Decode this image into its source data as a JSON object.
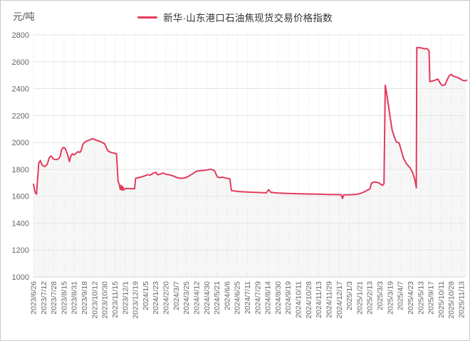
{
  "page": {
    "background": "#ffffff",
    "border_color": "#c9c9c9"
  },
  "header": {
    "unit_label": "元/吨",
    "legend": {
      "label": "新华·山东港口石油焦现货交易价格指数",
      "marker_color": "#e23b5c"
    }
  },
  "chart_data": {
    "type": "area",
    "title": "新华·山东港口石油焦现货交易价格指数",
    "ylabel": "元/吨",
    "ylim": [
      1000,
      2800
    ],
    "y_ticks": [
      1000,
      1200,
      1400,
      1600,
      1800,
      2000,
      2200,
      2400,
      2600,
      2800
    ],
    "grid": true,
    "legend_position": "top-center",
    "x_tick_labels": [
      "2023/6/26",
      "2023/7/12",
      "2023/7/28",
      "2023/8/15",
      "2023/8/31",
      "2023/9/18",
      "2023/10/12",
      "2023/10/30",
      "2023/11/15",
      "2023/12/1",
      "2023/12/19",
      "2024/1/5",
      "2024/1/23",
      "2024/2/20",
      "2024/3/7",
      "2024/3/25",
      "2024/4/12",
      "2024/4/30",
      "2024/5/21",
      "2024/6/6",
      "2024/6/25",
      "2024/7/11",
      "2024/7/29",
      "2024/8/14",
      "2024/8/30",
      "2024/9/19",
      "2024/10/11",
      "2024/10/28",
      "2024/11/13",
      "2024/11/29",
      "2024/12/17",
      "2025/1/3",
      "2025/1/21",
      "2025/2/13",
      "2025/3/3",
      "2025/3/19",
      "2025/4/7",
      "2025/4/23",
      "2025/5/13",
      "2025/9/17",
      "2025/10/11",
      "2025/10/28",
      "2025/11/13"
    ],
    "series": [
      {
        "name": "新华·山东港口石油焦现货交易价格指数",
        "points": [
          [
            0,
            1690
          ],
          [
            0.15,
            1632
          ],
          [
            0.3,
            1616
          ],
          [
            0.42,
            1742
          ],
          [
            0.52,
            1846
          ],
          [
            0.68,
            1866
          ],
          [
            0.85,
            1830
          ],
          [
            1.1,
            1821
          ],
          [
            1.35,
            1838
          ],
          [
            1.55,
            1886
          ],
          [
            1.72,
            1900
          ],
          [
            1.95,
            1878
          ],
          [
            2.2,
            1872
          ],
          [
            2.45,
            1878
          ],
          [
            2.62,
            1896
          ],
          [
            2.75,
            1946
          ],
          [
            2.92,
            1963
          ],
          [
            3.1,
            1957
          ],
          [
            3.25,
            1930
          ],
          [
            3.4,
            1896
          ],
          [
            3.52,
            1858
          ],
          [
            3.65,
            1896
          ],
          [
            3.8,
            1916
          ],
          [
            4,
            1908
          ],
          [
            4.2,
            1921
          ],
          [
            4.38,
            1932
          ],
          [
            4.55,
            1926
          ],
          [
            4.7,
            1944
          ],
          [
            4.85,
            1986
          ],
          [
            5,
            2000
          ],
          [
            5.2,
            2009
          ],
          [
            5.42,
            2016
          ],
          [
            5.65,
            2024
          ],
          [
            5.82,
            2028
          ],
          [
            6.1,
            2018
          ],
          [
            6.5,
            2008
          ],
          [
            6.8,
            1998
          ],
          [
            7,
            1989
          ],
          [
            7.15,
            1961
          ],
          [
            7.32,
            1937
          ],
          [
            7.6,
            1926
          ],
          [
            7.9,
            1921
          ],
          [
            8.15,
            1916
          ],
          [
            8.3,
            1712
          ],
          [
            8.42,
            1688
          ],
          [
            8.52,
            1650
          ],
          [
            8.6,
            1681
          ],
          [
            8.68,
            1646
          ],
          [
            8.76,
            1672
          ],
          [
            8.84,
            1646
          ],
          [
            9,
            1658
          ],
          [
            9.5,
            1657
          ],
          [
            9.92,
            1656
          ],
          [
            10.02,
            1734
          ],
          [
            10.3,
            1738
          ],
          [
            10.6,
            1744
          ],
          [
            10.9,
            1751
          ],
          [
            11.2,
            1761
          ],
          [
            11.45,
            1757
          ],
          [
            11.75,
            1771
          ],
          [
            12,
            1779
          ],
          [
            12.2,
            1759
          ],
          [
            12.45,
            1765
          ],
          [
            12.7,
            1773
          ],
          [
            13,
            1764
          ],
          [
            13.4,
            1758
          ],
          [
            13.75,
            1750
          ],
          [
            14.1,
            1738
          ],
          [
            14.5,
            1733
          ],
          [
            14.9,
            1737
          ],
          [
            15.2,
            1748
          ],
          [
            15.6,
            1766
          ],
          [
            16,
            1786
          ],
          [
            16.4,
            1790
          ],
          [
            16.8,
            1793
          ],
          [
            17.1,
            1797
          ],
          [
            17.38,
            1801
          ],
          [
            17.6,
            1795
          ],
          [
            17.78,
            1789
          ],
          [
            17.9,
            1767
          ],
          [
            18.05,
            1743
          ],
          [
            18.3,
            1738
          ],
          [
            18.55,
            1742
          ],
          [
            18.8,
            1737
          ],
          [
            19.05,
            1733
          ],
          [
            19.28,
            1729
          ],
          [
            19.42,
            1643
          ],
          [
            19.7,
            1639
          ],
          [
            20.2,
            1635
          ],
          [
            21,
            1631
          ],
          [
            22,
            1628
          ],
          [
            22.85,
            1625
          ],
          [
            23.08,
            1649
          ],
          [
            23.3,
            1629
          ],
          [
            24,
            1624
          ],
          [
            25,
            1621
          ],
          [
            26,
            1619
          ],
          [
            27,
            1617
          ],
          [
            28,
            1615
          ],
          [
            29,
            1613
          ],
          [
            30,
            1612
          ],
          [
            30.22,
            1611
          ],
          [
            30.32,
            1583
          ],
          [
            30.45,
            1611
          ],
          [
            31,
            1611
          ],
          [
            31.7,
            1614
          ],
          [
            32.1,
            1621
          ],
          [
            32.5,
            1634
          ],
          [
            32.8,
            1647
          ],
          [
            33.02,
            1655
          ],
          [
            33.18,
            1699
          ],
          [
            33.5,
            1707
          ],
          [
            33.85,
            1701
          ],
          [
            34.05,
            1691
          ],
          [
            34.25,
            1681
          ],
          [
            34.4,
            1693
          ],
          [
            34.52,
            2426
          ],
          [
            34.72,
            2336
          ],
          [
            34.98,
            2200
          ],
          [
            35.2,
            2091
          ],
          [
            35.4,
            2043
          ],
          [
            35.62,
            2003
          ],
          [
            35.88,
            1997
          ],
          [
            36.05,
            1953
          ],
          [
            36.3,
            1886
          ],
          [
            36.6,
            1841
          ],
          [
            36.95,
            1813
          ],
          [
            37.2,
            1777
          ],
          [
            37.35,
            1743
          ],
          [
            37.5,
            1695
          ],
          [
            37.57,
            1663
          ],
          [
            37.62,
            2706
          ],
          [
            38.05,
            2703
          ],
          [
            38.4,
            2696
          ],
          [
            38.6,
            2699
          ],
          [
            38.82,
            2683
          ],
          [
            38.9,
            2452
          ],
          [
            39.1,
            2456
          ],
          [
            39.4,
            2463
          ],
          [
            39.7,
            2471
          ],
          [
            39.95,
            2435
          ],
          [
            40.15,
            2423
          ],
          [
            40.4,
            2431
          ],
          [
            40.6,
            2467
          ],
          [
            40.8,
            2497
          ],
          [
            41,
            2506
          ],
          [
            41.2,
            2493
          ],
          [
            41.45,
            2487
          ],
          [
            41.7,
            2481
          ],
          [
            41.9,
            2473
          ],
          [
            42.1,
            2463
          ],
          [
            42.3,
            2458
          ],
          [
            42.5,
            2463
          ]
        ]
      }
    ],
    "colors": {
      "line": "#e23b5c",
      "grid": "#e3e3e3",
      "vgrid": "#dedede",
      "axis_line": "#cfcfcf",
      "tick_text": "#666666",
      "fill_dot": "#e2e2e2"
    }
  }
}
